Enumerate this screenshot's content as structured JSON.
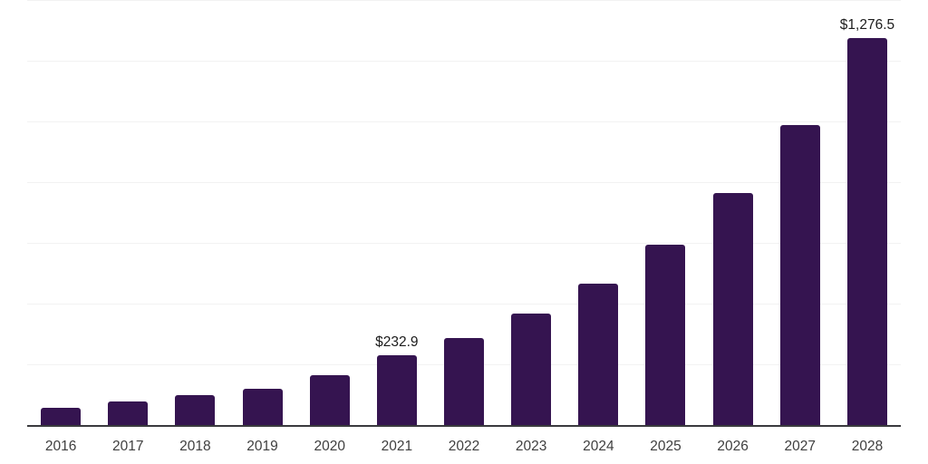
{
  "chart_data": {
    "type": "bar",
    "title": "",
    "xlabel": "",
    "ylabel": "",
    "categories": [
      "2016",
      "2017",
      "2018",
      "2019",
      "2020",
      "2021",
      "2022",
      "2023",
      "2024",
      "2025",
      "2026",
      "2027",
      "2028"
    ],
    "values": [
      60,
      81,
      102,
      123,
      167,
      232.9,
      290,
      370,
      469,
      598,
      767,
      990,
      1276.5
    ],
    "data_labels": [
      "",
      "",
      "",
      "",
      "",
      "$232.9",
      "",
      "",
      "",
      "",
      "",
      "",
      "$1,276.5"
    ],
    "labeled_points": [
      {
        "category": "2021",
        "label": "$232.9"
      },
      {
        "category": "2028",
        "label": "$1,276.5"
      }
    ],
    "ylim": [
      0,
      1400
    ],
    "grid_step": 200,
    "grid": "horizontal",
    "legend": "none",
    "y_tick_labels_visible": false
  },
  "style": {
    "bar_color": "#351450",
    "gridline_color": "#f2f2f2",
    "axis_line_color": "#3a3a3e",
    "tick_label_color": "#3f3f3f",
    "data_label_color": "#1c1c1c",
    "background": "#ffffff"
  }
}
